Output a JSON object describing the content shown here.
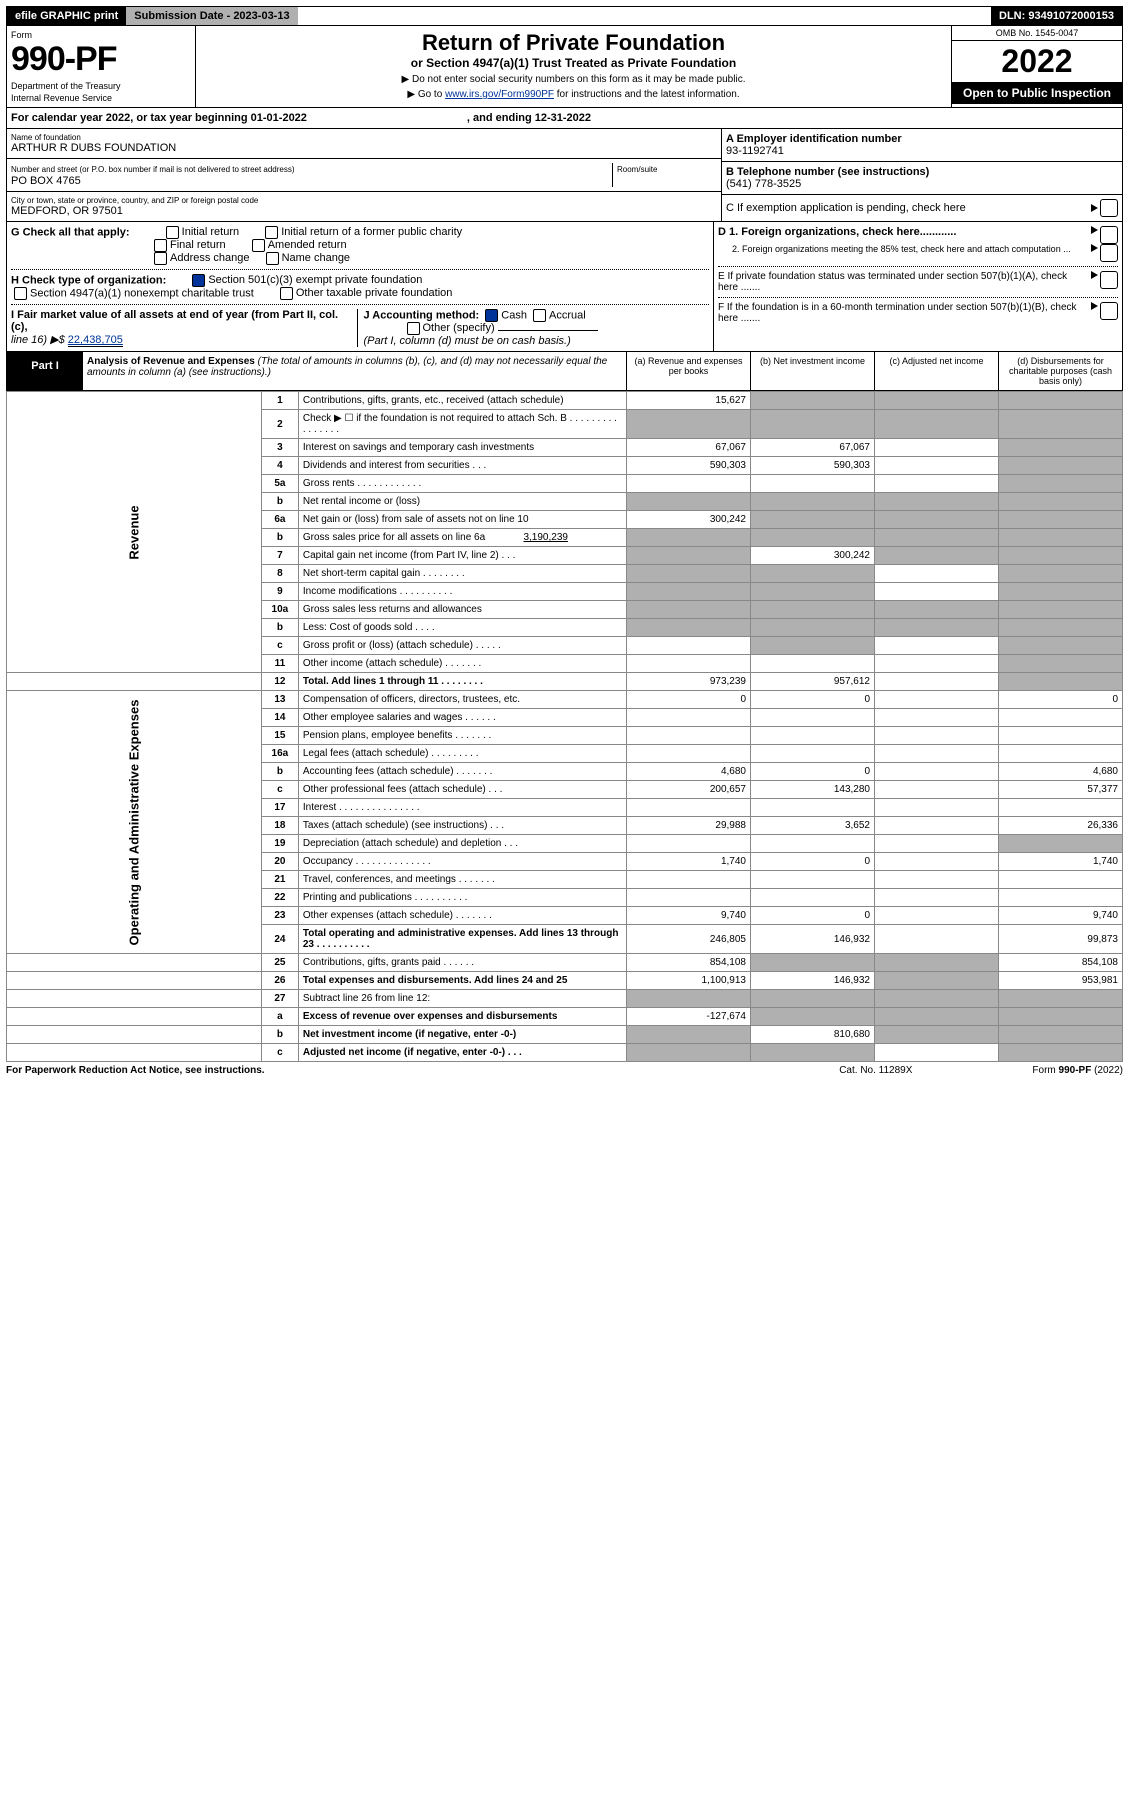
{
  "topbar": {
    "efile": "efile GRAPHIC print",
    "submission": "Submission Date - 2023-03-13",
    "dln": "DLN: 93491072000153"
  },
  "header": {
    "form": "Form",
    "number": "990-PF",
    "dept": "Department of the Treasury",
    "irs": "Internal Revenue Service",
    "title": "Return of Private Foundation",
    "subtitle": "or Section 4947(a)(1) Trust Treated as Private Foundation",
    "note1": "▶ Do not enter social security numbers on this form as it may be made public.",
    "note2": "▶ Go to ",
    "note2link": "www.irs.gov/Form990PF",
    "note2b": " for instructions and the latest information.",
    "omb": "OMB No. 1545-0047",
    "year": "2022",
    "open": "Open to Public Inspection"
  },
  "cal": {
    "text": "For calendar year 2022, or tax year beginning 01-01-2022",
    "end": ", and ending 12-31-2022"
  },
  "id": {
    "name_lab": "Name of foundation",
    "name": "ARTHUR R DUBS FOUNDATION",
    "addr_lab": "Number and street (or P.O. box number if mail is not delivered to street address)",
    "room_lab": "Room/suite",
    "addr": "PO BOX 4765",
    "city_lab": "City or town, state or province, country, and ZIP or foreign postal code",
    "city": "MEDFORD, OR  97501",
    "a_lab": "A Employer identification number",
    "a": "93-1192741",
    "b_lab": "B Telephone number (see instructions)",
    "b": "(541) 778-3525",
    "c_lab": "C If exemption application is pending, check here"
  },
  "g": {
    "lab": "G Check all that apply:",
    "i": "Initial return",
    "ipc": "Initial return of a former public charity",
    "f": "Final return",
    "a": "Amended return",
    "ac": "Address change",
    "nc": "Name change"
  },
  "h": {
    "lab": "H Check type of organization:",
    "s501": "Section 501(c)(3) exempt private foundation",
    "s4947": "Section 4947(a)(1) nonexempt charitable trust",
    "other": "Other taxable private foundation"
  },
  "d": {
    "d1": "D 1. Foreign organizations, check here............",
    "d2": "2. Foreign organizations meeting the 85% test, check here and attach computation ..."
  },
  "e": {
    "lab": "E  If private foundation status was terminated under section 507(b)(1)(A), check here ......."
  },
  "f": {
    "lab": "F  If the foundation is in a 60-month termination under section 507(b)(1)(B), check here ......."
  },
  "i": {
    "lab": "I Fair market value of all assets at end of year (from Part II, col. (c),",
    "line": "line 16) ▶$ ",
    "val": "22,438,705"
  },
  "j": {
    "lab": "J Accounting method:",
    "cash": "Cash",
    "accrual": "Accrual",
    "other": "Other (specify)",
    "note": "(Part I, column (d) must be on cash basis.)"
  },
  "p1": {
    "lab": "Part I",
    "title": "Analysis of Revenue and Expenses ",
    "desc": "(The total of amounts in columns (b), (c), and (d) may not necessarily equal the amounts in column (a) (see instructions).)",
    "ca": "(a)   Revenue and expenses per books",
    "cb": "(b)   Net investment income",
    "cc": "(c)  Adjusted net income",
    "cd": "(d)  Disbursements for charitable purposes (cash basis only)"
  },
  "side": {
    "rev": "Revenue",
    "exp": "Operating and Administrative Expenses"
  },
  "rows": {
    "r1": {
      "n": "1",
      "t": "Contributions, gifts, grants, etc., received (attach schedule)",
      "a": "15,627"
    },
    "r2": {
      "n": "2",
      "t": "Check ▶ ☐ if the foundation is not required to attach Sch. B    .   .   .   .   .   .   .   .   .   .   .   .   .   .   .   ."
    },
    "r3": {
      "n": "3",
      "t": "Interest on savings and temporary cash investments",
      "a": "67,067",
      "b": "67,067"
    },
    "r4": {
      "n": "4",
      "t": "Dividends and interest from securities    .   .   .",
      "a": "590,303",
      "b": "590,303"
    },
    "r5a": {
      "n": "5a",
      "t": "Gross rents    .   .   .   .   .   .   .   .   .   .   .   ."
    },
    "r5b": {
      "n": "b",
      "t": "Net rental income or (loss)  "
    },
    "r6a": {
      "n": "6a",
      "t": "Net gain or (loss) from sale of assets not on line 10",
      "a": "300,242"
    },
    "r6b": {
      "n": "b",
      "t": "Gross sales price for all assets on line 6a",
      "v": "3,190,239"
    },
    "r7": {
      "n": "7",
      "t": "Capital gain net income (from Part IV, line 2)   .   .   .",
      "b": "300,242"
    },
    "r8": {
      "n": "8",
      "t": "Net short-term capital gain  .   .   .   .   .   .   .   ."
    },
    "r9": {
      "n": "9",
      "t": "Income modifications  .   .   .   .   .   .   .   .   .   ."
    },
    "r10a": {
      "n": "10a",
      "t": "Gross sales less returns and allowances"
    },
    "r10b": {
      "n": "b",
      "t": "Less: Cost of goods sold     .   .   .   ."
    },
    "r10c": {
      "n": "c",
      "t": "Gross profit or (loss) (attach schedule)    .   .   .   .   ."
    },
    "r11": {
      "n": "11",
      "t": "Other income (attach schedule)    .   .   .   .   .   .   ."
    },
    "r12": {
      "n": "12",
      "t": "Total. Add lines 1 through 11   .   .   .   .   .   .   .   .",
      "a": "973,239",
      "b": "957,612"
    },
    "r13": {
      "n": "13",
      "t": "Compensation of officers, directors, trustees, etc.",
      "a": "0",
      "b": "0",
      "d": "0"
    },
    "r14": {
      "n": "14",
      "t": "Other employee salaries and wages   .   .   .   .   .   ."
    },
    "r15": {
      "n": "15",
      "t": "Pension plans, employee benefits  .   .   .   .   .   .   ."
    },
    "r16a": {
      "n": "16a",
      "t": "Legal fees (attach schedule)  .   .   .   .   .   .   .   .   ."
    },
    "r16b": {
      "n": "b",
      "t": "Accounting fees (attach schedule)  .   .   .   .   .   .   .",
      "a": "4,680",
      "b": "0",
      "d": "4,680"
    },
    "r16c": {
      "n": "c",
      "t": "Other professional fees (attach schedule)    .   .   .",
      "a": "200,657",
      "b": "143,280",
      "d": "57,377"
    },
    "r17": {
      "n": "17",
      "t": "Interest  .   .   .   .   .   .   .   .   .   .   .   .   .   .   ."
    },
    "r18": {
      "n": "18",
      "t": "Taxes (attach schedule) (see instructions)    .   .   .",
      "a": "29,988",
      "b": "3,652",
      "d": "26,336"
    },
    "r19": {
      "n": "19",
      "t": "Depreciation (attach schedule) and depletion   .   .   ."
    },
    "r20": {
      "n": "20",
      "t": "Occupancy .   .   .   .   .   .   .   .   .   .   .   .   .   .",
      "a": "1,740",
      "b": "0",
      "d": "1,740"
    },
    "r21": {
      "n": "21",
      "t": "Travel, conferences, and meetings  .   .   .   .   .   .   ."
    },
    "r22": {
      "n": "22",
      "t": "Printing and publications  .   .   .   .   .   .   .   .   .   ."
    },
    "r23": {
      "n": "23",
      "t": "Other expenses (attach schedule)  .   .   .   .   .   .   .",
      "a": "9,740",
      "b": "0",
      "d": "9,740"
    },
    "r24": {
      "n": "24",
      "t": "Total operating and administrative expenses. Add lines 13 through 23   .   .   .   .   .   .   .   .   .   .",
      "a": "246,805",
      "b": "146,932",
      "d": "99,873"
    },
    "r25": {
      "n": "25",
      "t": "Contributions, gifts, grants paid    .   .   .   .   .   .",
      "a": "854,108",
      "d": "854,108"
    },
    "r26": {
      "n": "26",
      "t": "Total expenses and disbursements. Add lines 24 and 25",
      "a": "1,100,913",
      "b": "146,932",
      "d": "953,981"
    },
    "r27": {
      "n": "27",
      "t": "Subtract line 26 from line 12:"
    },
    "r27a": {
      "n": "a",
      "t": "Excess of revenue over expenses and disbursements",
      "a": "-127,674"
    },
    "r27b": {
      "n": "b",
      "t": "Net investment income (if negative, enter -0-)",
      "b": "810,680"
    },
    "r27c": {
      "n": "c",
      "t": "Adjusted net income (if negative, enter -0-)   .   .   ."
    }
  },
  "footer": {
    "l": "For Paperwork Reduction Act Notice, see instructions.",
    "m": "Cat. No. 11289X",
    "r": "Form 990-PF (2022)"
  }
}
